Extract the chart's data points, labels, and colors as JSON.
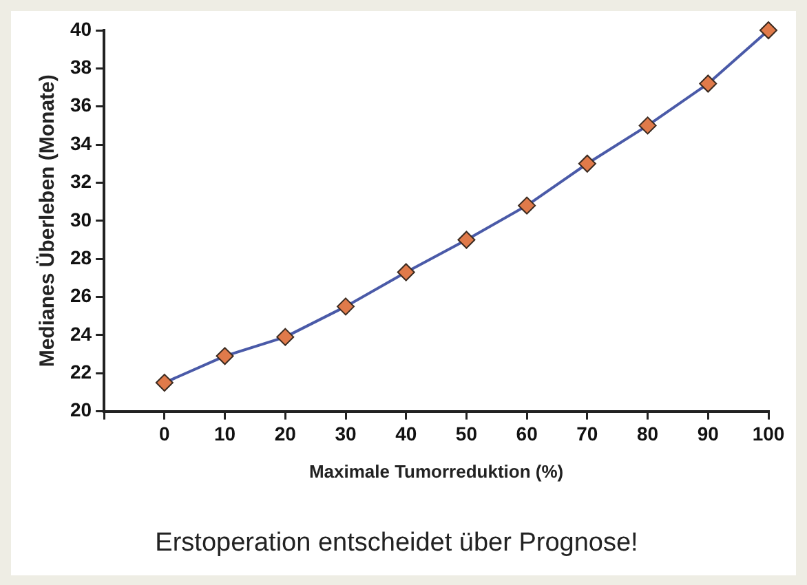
{
  "chart_data": {
    "type": "line",
    "title": "Erstoperation entscheidet über Prognose!",
    "xlabel": "Maximale Tumorreduktion (%)",
    "ylabel": "Medianes Überleben (Monate)",
    "x": [
      0,
      10,
      20,
      30,
      40,
      50,
      60,
      70,
      80,
      90,
      100
    ],
    "series": [
      {
        "color": "#4a5aa8",
        "values": [
          21.5,
          22.9,
          23.9,
          25.5,
          27.3,
          29,
          30.8,
          33,
          35,
          37.2,
          40
        ]
      }
    ],
    "xlim": [
      -10,
      100
    ],
    "xticks": [
      {
        "value": -10,
        "label": null
      },
      0,
      10,
      20,
      30,
      40,
      50,
      60,
      70,
      80,
      90,
      100
    ],
    "ylim": [
      20,
      40
    ],
    "yticks": [
      20,
      22,
      24,
      26,
      28,
      30,
      32,
      34,
      36,
      38,
      40
    ],
    "grid": false,
    "legend": false,
    "marker": "diamond",
    "line_style": "solid"
  }
}
